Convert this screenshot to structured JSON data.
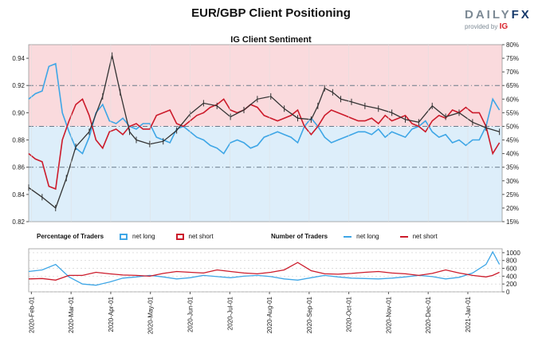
{
  "header": {
    "title": "EUR/GBP Client Positioning",
    "subtitle": "IG Client Sentiment",
    "logo_main": "DAILY",
    "logo_fx": "FX",
    "logo_sub": "provided by",
    "logo_ig": "IG"
  },
  "legend": {
    "pct_label": "Percentage of Traders",
    "num_label": "Number of Traders",
    "net_long": "net long",
    "net_short": "net short"
  },
  "colors": {
    "long": "#3ea6e6",
    "short": "#cc1b2b",
    "price": "#333333",
    "bg_short": "#fadadd",
    "bg_long": "#ddeefa"
  },
  "chart_data": [
    {
      "type": "line",
      "title": "EUR/GBP Client Positioning",
      "subtitle": "IG Client Sentiment",
      "left_axis": {
        "range": [
          0.82,
          0.95
        ],
        "ticks": [
          "0.82",
          "0.84",
          "0.86",
          "0.88",
          "0.90",
          "0.92",
          "0.94"
        ]
      },
      "right_axis": {
        "range": [
          15,
          80
        ],
        "ticks": [
          "15%",
          "20%",
          "25%",
          "30%",
          "35%",
          "40%",
          "45%",
          "50%",
          "55%",
          "60%",
          "65%",
          "70%",
          "75%",
          "80%"
        ]
      },
      "x_ticks": [
        "2020-Feb-01",
        "2020-Mar-01",
        "2020-Apr-01",
        "2020-May-01",
        "2020-Jun-01",
        "2020-Jul-01",
        "2020-Aug-01",
        "2020-Sep-01",
        "2020-Oct-01",
        "2020-Nov-01",
        "2020-Dec-01",
        "2021-Jan-01"
      ],
      "price_series": {
        "x": [
          0,
          10,
          20,
          28,
          35,
          45,
          55,
          62,
          68,
          75,
          80,
          90,
          100,
          110,
          120,
          130,
          140,
          150,
          160,
          170,
          180,
          190,
          200,
          210,
          215,
          220,
          226,
          232,
          240,
          250,
          260,
          270,
          280,
          290,
          300,
          310,
          320,
          330,
          340,
          350
        ],
        "y": [
          0.845,
          0.838,
          0.83,
          0.852,
          0.875,
          0.886,
          0.912,
          0.942,
          0.915,
          0.886,
          0.88,
          0.877,
          0.879,
          0.887,
          0.899,
          0.907,
          0.905,
          0.897,
          0.902,
          0.91,
          0.912,
          0.903,
          0.896,
          0.895,
          0.905,
          0.918,
          0.915,
          0.91,
          0.908,
          0.905,
          0.903,
          0.9,
          0.895,
          0.893,
          0.905,
          0.897,
          0.9,
          0.893,
          0.889,
          0.886
        ]
      },
      "series": [
        {
          "name": "net long",
          "x": [
            0,
            5,
            10,
            15,
            20,
            25,
            30,
            35,
            40,
            45,
            50,
            55,
            60,
            65,
            70,
            75,
            80,
            85,
            90,
            95,
            100,
            105,
            110,
            115,
            120,
            125,
            130,
            135,
            140,
            145,
            150,
            155,
            160,
            165,
            170,
            175,
            180,
            185,
            190,
            195,
            200,
            205,
            210,
            215,
            220,
            225,
            230,
            235,
            240,
            245,
            250,
            255,
            260,
            265,
            270,
            275,
            280,
            285,
            290,
            295,
            300,
            305,
            310,
            315,
            320,
            325,
            330,
            335,
            340,
            345,
            350
          ],
          "y": [
            60,
            62,
            63,
            72,
            73,
            55,
            48,
            42,
            40,
            46,
            55,
            58,
            52,
            51,
            53,
            50,
            49,
            51,
            51,
            46,
            45,
            44,
            49,
            50,
            48,
            46,
            45,
            43,
            42,
            40,
            44,
            45,
            44,
            42,
            43,
            46,
            47,
            48,
            47,
            46,
            44,
            50,
            53,
            50,
            46,
            44,
            45,
            46,
            47,
            48,
            48,
            47,
            49,
            46,
            48,
            47,
            46,
            49,
            50,
            52,
            48,
            46,
            47,
            44,
            45,
            43,
            45,
            45,
            50,
            60,
            56
          ]
        },
        {
          "name": "net short",
          "x": [
            0,
            5,
            10,
            15,
            20,
            25,
            30,
            35,
            40,
            45,
            50,
            55,
            60,
            65,
            70,
            75,
            80,
            85,
            90,
            95,
            100,
            105,
            110,
            115,
            120,
            125,
            130,
            135,
            140,
            145,
            150,
            155,
            160,
            165,
            170,
            175,
            180,
            185,
            190,
            195,
            200,
            205,
            210,
            215,
            220,
            225,
            230,
            235,
            240,
            245,
            250,
            255,
            260,
            265,
            270,
            275,
            280,
            285,
            290,
            295,
            300,
            305,
            310,
            315,
            320,
            325,
            330,
            335,
            340,
            345,
            350
          ],
          "y": [
            40,
            38,
            37,
            28,
            27,
            45,
            52,
            58,
            60,
            54,
            45,
            42,
            48,
            49,
            47,
            50,
            51,
            49,
            49,
            54,
            55,
            56,
            51,
            50,
            52,
            54,
            55,
            57,
            58,
            60,
            56,
            55,
            56,
            58,
            57,
            54,
            53,
            52,
            53,
            54,
            56,
            50,
            47,
            50,
            54,
            56,
            55,
            54,
            53,
            52,
            52,
            53,
            51,
            54,
            52,
            53,
            54,
            51,
            50,
            48,
            52,
            54,
            53,
            56,
            55,
            57,
            55,
            55,
            50,
            40,
            44
          ]
        }
      ]
    },
    {
      "type": "line",
      "title": "Number of Traders",
      "right_axis": {
        "range": [
          0,
          1100
        ],
        "ticks": [
          "0",
          "200",
          "400",
          "600",
          "800",
          "1000"
        ]
      },
      "series": [
        {
          "name": "net long",
          "x": [
            0,
            10,
            20,
            30,
            40,
            50,
            60,
            70,
            80,
            90,
            100,
            110,
            120,
            130,
            140,
            150,
            160,
            170,
            180,
            190,
            200,
            210,
            220,
            230,
            240,
            250,
            260,
            270,
            280,
            290,
            300,
            310,
            320,
            330,
            340,
            345,
            350
          ],
          "y": [
            520,
            560,
            700,
            380,
            200,
            170,
            250,
            350,
            380,
            420,
            380,
            330,
            360,
            420,
            390,
            360,
            400,
            420,
            390,
            330,
            300,
            360,
            420,
            380,
            350,
            340,
            330,
            350,
            380,
            420,
            390,
            330,
            370,
            480,
            700,
            1020,
            700
          ]
        },
        {
          "name": "net short",
          "x": [
            0,
            10,
            20,
            30,
            40,
            50,
            60,
            70,
            80,
            90,
            100,
            110,
            120,
            130,
            140,
            150,
            160,
            170,
            180,
            190,
            200,
            210,
            220,
            230,
            240,
            250,
            260,
            270,
            280,
            290,
            300,
            310,
            320,
            330,
            340,
            345,
            350
          ],
          "y": [
            330,
            340,
            300,
            420,
            420,
            500,
            460,
            430,
            420,
            400,
            470,
            520,
            500,
            480,
            560,
            520,
            480,
            460,
            500,
            560,
            750,
            540,
            460,
            450,
            470,
            500,
            520,
            480,
            460,
            420,
            470,
            560,
            480,
            420,
            380,
            420,
            500
          ]
        }
      ]
    }
  ]
}
